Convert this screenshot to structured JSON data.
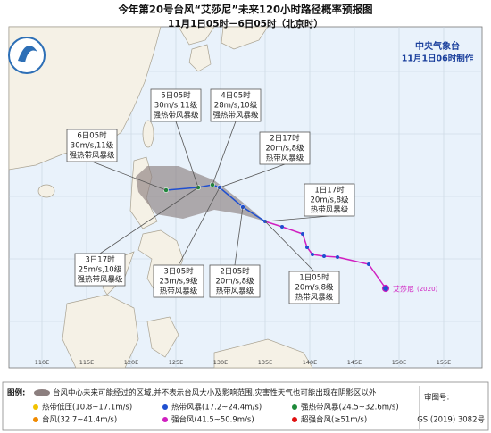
{
  "header": {
    "title": "今年第20号台风“艾莎尼”未来120小时路径概率预报图",
    "subtitle": "11月1日05时－6日05时（北京时）",
    "agency": "中央气象台",
    "issued": "11月1日06时制作"
  },
  "callouts": [
    {
      "time": "6日05时",
      "wind": "30m/s,11级",
      "category": "强热带风暴级"
    },
    {
      "time": "5日05时",
      "wind": "30m/s,11级",
      "category": "强热带风暴级"
    },
    {
      "time": "4日05时",
      "wind": "28m/s,10级",
      "category": "强热带风暴级"
    },
    {
      "time": "2日17时",
      "wind": "20m/s,8级",
      "category": "热带风暴级"
    },
    {
      "time": "1日17时",
      "wind": "20m/s,8级",
      "category": "热带风暴级"
    },
    {
      "time": "1日05时",
      "wind": "20m/s,8级",
      "category": "热带风暴级"
    },
    {
      "time": "2日05时",
      "wind": "20m/s,8级",
      "category": "热带风暴级"
    },
    {
      "time": "3日05时",
      "wind": "23m/s,9级",
      "category": "热带风暴级"
    },
    {
      "time": "3日17时",
      "wind": "25m/s,10级",
      "category": "强热带风暴级"
    }
  ],
  "storm": {
    "name": "艾莎尼",
    "number": "(2020)"
  },
  "longitudes": [
    "110E",
    "115E",
    "120E",
    "125E",
    "130E",
    "135E",
    "140E",
    "145E",
    "150E",
    "155E"
  ],
  "legend": {
    "heading": "图例:",
    "cone_note": "台风中心未来可能经过的区域,并不表示台风大小及影响范围,灾害性天气也可能出现在阴影区以外",
    "items": [
      {
        "label": "热带低压(10.8~17.1m/s)",
        "color": "#f2c200"
      },
      {
        "label": "热带风暴(17.2~24.4m/s)",
        "color": "#1f4fd0"
      },
      {
        "label": "强热带风暴(24.5~32.6m/s)",
        "color": "#1e8a3a"
      },
      {
        "label": "台风(32.7~41.4m/s)",
        "color": "#f08a00"
      },
      {
        "label": "强台风(41.5~50.9m/s)",
        "color": "#d020c0"
      },
      {
        "label": "超强台风(≥51m/s)",
        "color": "#e01010"
      }
    ]
  },
  "approval": {
    "label": "审图号:",
    "number": "GS (2019) 3082号"
  }
}
